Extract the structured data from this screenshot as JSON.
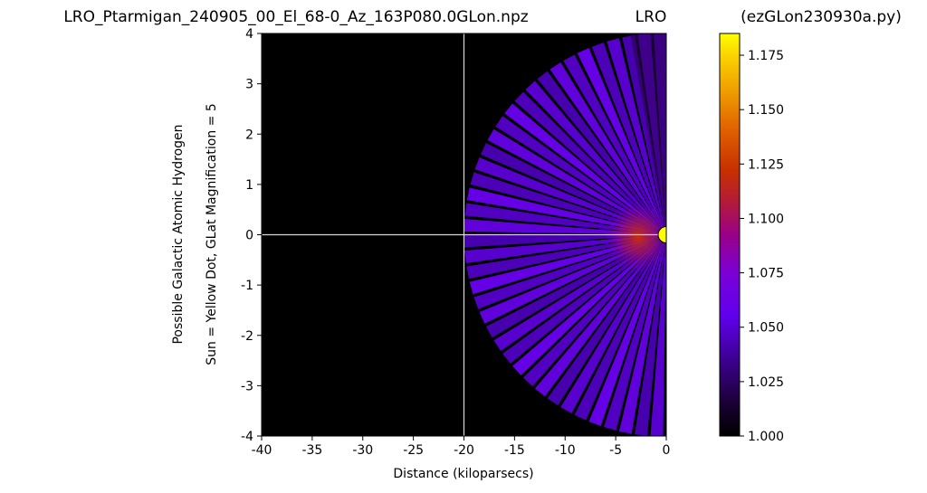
{
  "chart_data": {
    "type": "heatmap",
    "title_left": "LRO_Ptarmigan_240905_00_El_68-0_Az_163P080.0GLon.npz",
    "title_center": "LRO",
    "title_right": "(ezGLon230930a.py)",
    "xlabel": "Distance (kiloparsecs)",
    "ylabel_line1": "Possible Galactic Atomic Hydrogen",
    "ylabel_line2": "Sun = Yellow Dot, GLat Magnification = 5",
    "xlim": [
      -40,
      0
    ],
    "ylim": [
      -4,
      4
    ],
    "xticks": [
      "-40",
      "-35",
      "-30",
      "-25",
      "-20",
      "-15",
      "-10",
      "-5",
      "0"
    ],
    "yticks": [
      "4",
      "3",
      "2",
      "1",
      "0",
      "-1",
      "-2",
      "-3",
      "-4"
    ],
    "colorbar": {
      "range": [
        1.0,
        1.185
      ],
      "ticks": [
        "1.175",
        "1.150",
        "1.125",
        "1.100",
        "1.075",
        "1.050",
        "1.025",
        "1.000"
      ],
      "colormap": "gnuplot"
    },
    "reference_lines": {
      "vertical_x": -20,
      "horizontal_y": 0
    },
    "sun_marker": {
      "x": 0,
      "y": 0,
      "color": "#ffff00"
    },
    "fan": {
      "max_radius_kpc": 20,
      "typical_value": 1.03,
      "peak_value": 1.1,
      "peak_near_x": -3
    }
  }
}
